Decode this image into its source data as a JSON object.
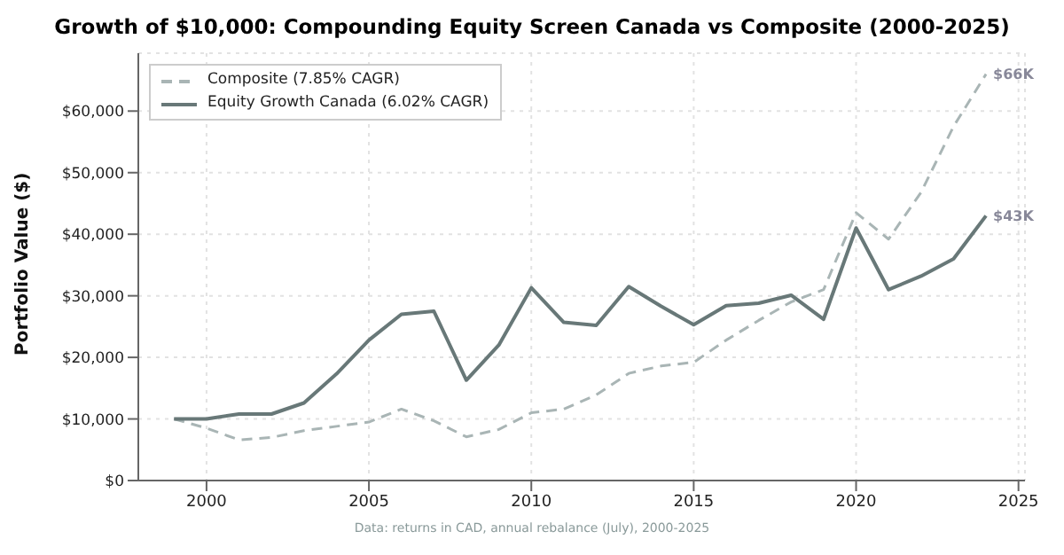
{
  "chart_data": {
    "type": "line",
    "title": "Growth of $10,000: Compounding Equity Screen Canada vs Composite (2000-2025)",
    "ylabel": "Portfolio Value ($)",
    "x": [
      1999,
      2000,
      2001,
      2002,
      2003,
      2004,
      2005,
      2006,
      2007,
      2008,
      2009,
      2010,
      2011,
      2012,
      2013,
      2014,
      2015,
      2016,
      2017,
      2018,
      2019,
      2020,
      2021,
      2022,
      2023,
      2024
    ],
    "series": [
      {
        "name": "Composite (7.85% CAGR)",
        "color": "#a9b5b5",
        "line_style": "dashed",
        "values": [
          10000,
          8500,
          6600,
          7000,
          8100,
          8800,
          9500,
          11600,
          9700,
          7100,
          8300,
          11000,
          11600,
          13900,
          17400,
          18600,
          19200,
          22800,
          26000,
          29000,
          31000,
          43500,
          39200,
          46800,
          57500,
          66000
        ]
      },
      {
        "name": "Equity Growth Canada (6.02% CAGR)",
        "color": "#687878",
        "line_style": "solid",
        "values": [
          10000,
          10000,
          10800,
          10800,
          12600,
          17300,
          22800,
          27000,
          27500,
          16300,
          22000,
          31300,
          25700,
          25200,
          31500,
          28300,
          25300,
          28400,
          28800,
          30100,
          26200,
          41000,
          31000,
          33200,
          36000,
          43000
        ]
      }
    ],
    "xlim": [
      1997.9,
      2025.2
    ],
    "xticks": [
      2000,
      2005,
      2010,
      2015,
      2020,
      2025
    ],
    "ylim": [
      0,
      69400
    ],
    "yticks": [
      {
        "value": 0,
        "label": "$0"
      },
      {
        "value": 10000,
        "label": "$10,000"
      },
      {
        "value": 20000,
        "label": "$20,000"
      },
      {
        "value": 30000,
        "label": "$30,000"
      },
      {
        "value": 40000,
        "label": "$40,000"
      },
      {
        "value": 50000,
        "label": "$50,000"
      },
      {
        "value": 60000,
        "label": "$60,000"
      }
    ],
    "grid": true,
    "legend": "top left",
    "marker": "none",
    "annotations": [
      {
        "text": "$66K",
        "x": 2024,
        "y": 66000
      },
      {
        "text": "$43K",
        "x": 2024,
        "y": 43000
      },
      "Data: returns in CAD, annual rebalance (July), 2000-2025"
    ]
  }
}
